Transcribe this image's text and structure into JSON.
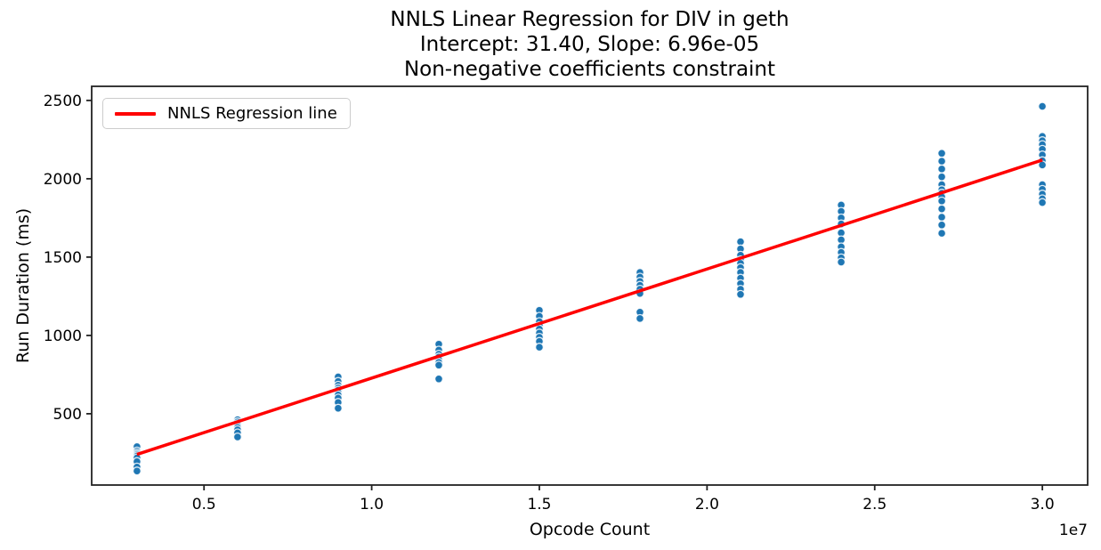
{
  "chart_data": {
    "type": "scatter",
    "title_lines": [
      "NNLS Linear Regression for DIV in geth",
      "Intercept: 31.40, Slope: 6.96e-05",
      "Non-negative coefficients constraint"
    ],
    "xlabel": "Opcode Count",
    "ylabel": "Run Duration (ms)",
    "x_offset_label": "1e7",
    "xlim": [
      1650000,
      31350000
    ],
    "ylim": [
      45,
      2590
    ],
    "x_ticks": [
      {
        "value": 5000000,
        "label": "0.5"
      },
      {
        "value": 10000000,
        "label": "1.0"
      },
      {
        "value": 15000000,
        "label": "1.5"
      },
      {
        "value": 20000000,
        "label": "2.0"
      },
      {
        "value": 25000000,
        "label": "2.5"
      },
      {
        "value": 30000000,
        "label": "3.0"
      }
    ],
    "y_ticks": [
      {
        "value": 500,
        "label": "500"
      },
      {
        "value": 1000,
        "label": "1000"
      },
      {
        "value": 1500,
        "label": "1500"
      },
      {
        "value": 2000,
        "label": "2000"
      },
      {
        "value": 2500,
        "label": "2500"
      }
    ],
    "grid": false,
    "scatter": {
      "name": "run-duration-samples",
      "marker_color": "#1f77b4",
      "marker_edge_color": "#ffffff",
      "clusters": [
        {
          "opcode_count": 3000000,
          "run_durations_ms": [
            290,
            262,
            250,
            240,
            230,
            218,
            195,
            160,
            135
          ]
        },
        {
          "opcode_count": 6000000,
          "run_durations_ms": [
            462,
            448,
            435,
            424,
            412,
            398,
            378,
            352
          ]
        },
        {
          "opcode_count": 9000000,
          "run_durations_ms": [
            735,
            706,
            682,
            664,
            650,
            636,
            620,
            600,
            572,
            535
          ]
        },
        {
          "opcode_count": 12000000,
          "run_durations_ms": [
            944,
            906,
            880,
            862,
            845,
            828,
            810,
            722
          ]
        },
        {
          "opcode_count": 15000000,
          "run_durations_ms": [
            1160,
            1122,
            1088,
            1062,
            1040,
            1015,
            988,
            962,
            925
          ]
        },
        {
          "opcode_count": 18000000,
          "run_durations_ms": [
            1402,
            1372,
            1345,
            1320,
            1295,
            1268,
            1148,
            1108
          ]
        },
        {
          "opcode_count": 21000000,
          "run_durations_ms": [
            1598,
            1552,
            1512,
            1482,
            1460,
            1432,
            1402,
            1365,
            1330,
            1295,
            1262
          ]
        },
        {
          "opcode_count": 24000000,
          "run_durations_ms": [
            1832,
            1792,
            1750,
            1712,
            1655,
            1610,
            1565,
            1530,
            1495,
            1468
          ]
        },
        {
          "opcode_count": 27000000,
          "run_durations_ms": [
            2162,
            2112,
            2062,
            2012,
            1962,
            1930,
            1908,
            1885,
            1858,
            1808,
            1755,
            1705,
            1652
          ]
        },
        {
          "opcode_count": 30000000,
          "run_durations_ms": [
            2462,
            2270,
            2243,
            2218,
            2188,
            2152,
            2115,
            2088,
            1962,
            1932,
            1902,
            1872,
            1848
          ]
        }
      ]
    },
    "regression": {
      "label": "NNLS Regression line",
      "color": "#ff0000",
      "intercept": 31.4,
      "slope": 6.96e-05,
      "x_start": 3000000,
      "x_end": 30000000
    },
    "legend": {
      "location": "upper left",
      "entries": [
        {
          "label": "NNLS Regression line",
          "color": "#ff0000",
          "sample": "line"
        }
      ]
    }
  }
}
